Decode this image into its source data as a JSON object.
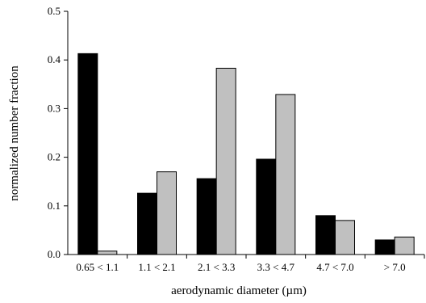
{
  "chart_data": {
    "type": "bar",
    "xlabel": "aerodynamic diameter (µm)",
    "ylabel": "normalized number fraction",
    "ylim": [
      0,
      0.5
    ],
    "yticks": [
      "0.0",
      "0.1",
      "0.2",
      "0.3",
      "0.4",
      "0.5"
    ],
    "categories": [
      "0.65 <  1.1",
      "1.1 <  2.1",
      "2.1 <  3.3",
      "3.3 <  4.7",
      "4.7 < 7.0",
      "> 7.0"
    ],
    "series": [
      {
        "values": [
          0.413,
          0.126,
          0.156,
          0.196,
          0.08,
          0.03
        ],
        "color": "#000000"
      },
      {
        "values": [
          0.007,
          0.17,
          0.383,
          0.329,
          0.07,
          0.036
        ],
        "color": "#c0c0c0"
      }
    ],
    "grid": false,
    "legend": "none"
  }
}
